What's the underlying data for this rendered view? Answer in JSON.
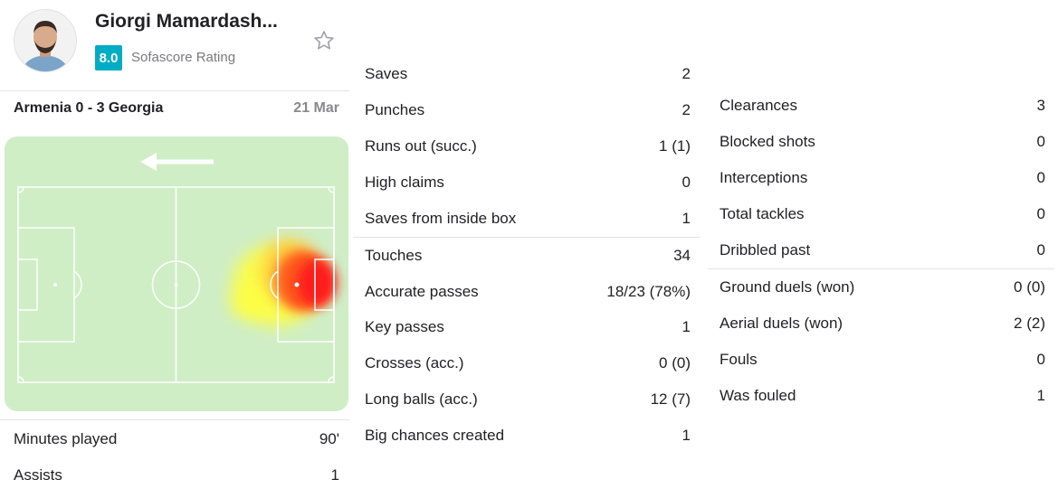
{
  "player": {
    "name": "Giorgi Mamardash...",
    "rating": "8.0",
    "rating_label": "Sofascore Rating"
  },
  "match": {
    "title": "Armenia 0 - 3 Georgia",
    "date": "21 Mar"
  },
  "colors": {
    "rating_badge": "#00adc4",
    "pitch_green": "#cfeec6",
    "heat_red": "#ff1a1a",
    "heat_yellow": "#ffff3c"
  },
  "left_stats": [
    {
      "label": "Minutes played",
      "value": "90'"
    },
    {
      "label": "Assists",
      "value": "1"
    }
  ],
  "goalkeeping": [
    {
      "label": "Saves",
      "value": "2"
    },
    {
      "label": "Punches",
      "value": "2"
    },
    {
      "label": "Runs out (succ.)",
      "value": "1 (1)"
    },
    {
      "label": "High claims",
      "value": "0"
    },
    {
      "label": "Saves from inside box",
      "value": "1"
    }
  ],
  "passing": [
    {
      "label": "Touches",
      "value": "34"
    },
    {
      "label": "Accurate passes",
      "value": "18/23 (78%)"
    },
    {
      "label": "Key passes",
      "value": "1"
    },
    {
      "label": "Crosses (acc.)",
      "value": "0 (0)"
    },
    {
      "label": "Long balls (acc.)",
      "value": "12 (7)"
    },
    {
      "label": "Big chances created",
      "value": "1"
    }
  ],
  "defending": [
    {
      "label": "Clearances",
      "value": "3"
    },
    {
      "label": "Blocked shots",
      "value": "0"
    },
    {
      "label": "Interceptions",
      "value": "0"
    },
    {
      "label": "Total tackles",
      "value": "0"
    },
    {
      "label": "Dribbled past",
      "value": "0"
    }
  ],
  "duels": [
    {
      "label": "Ground duels (won)",
      "value": "0 (0)"
    },
    {
      "label": "Aerial duels (won)",
      "value": "2 (2)"
    },
    {
      "label": "Fouls",
      "value": "0"
    },
    {
      "label": "Was fouled",
      "value": "1"
    }
  ]
}
